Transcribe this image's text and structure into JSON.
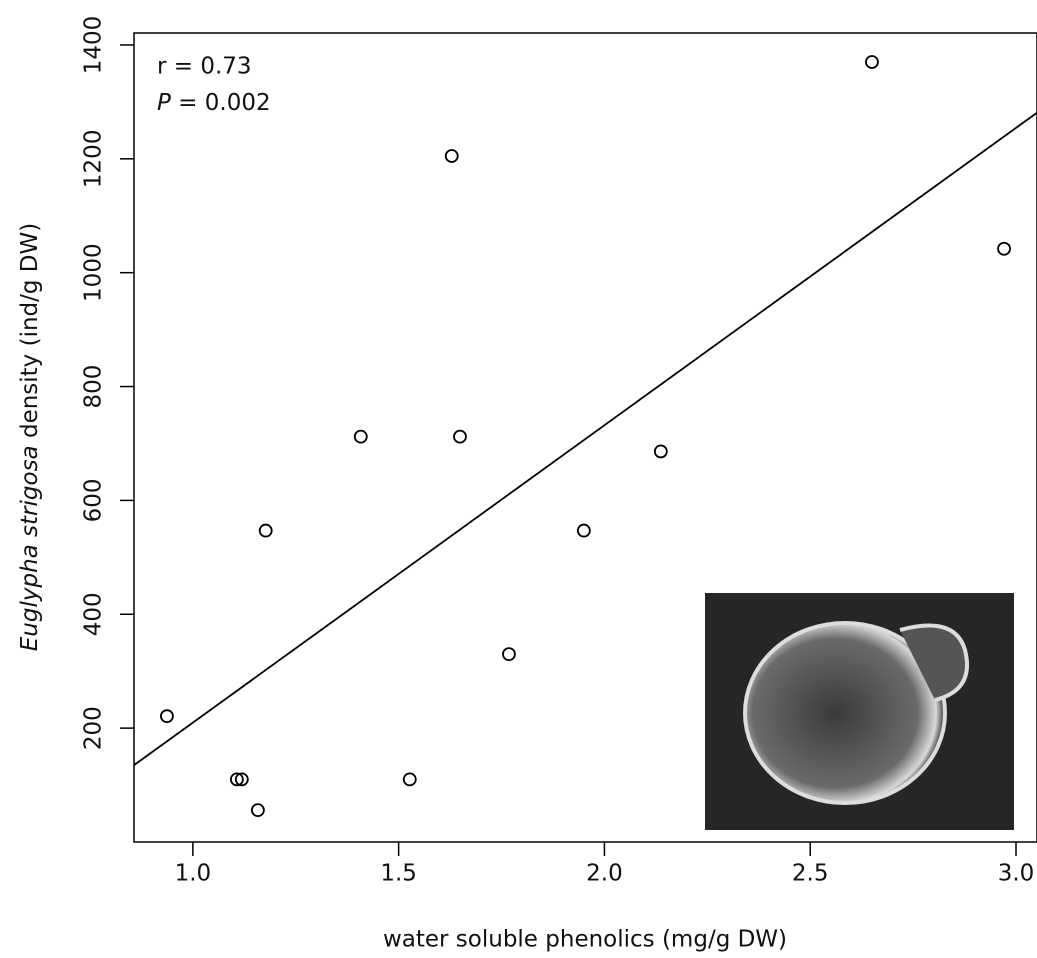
{
  "chart_data": {
    "type": "scatter",
    "x_label": "water soluble phenolics (mg/g DW)",
    "y_label": {
      "italic": "Euglypha strigosa",
      "text": " density (ind/g DW)"
    },
    "annotations": {
      "r": "r = 0.73",
      "p_italic": "P",
      "p_text": " = 0.002"
    },
    "x": [
      0.937,
      1.107,
      1.119,
      1.158,
      1.177,
      1.408,
      1.527,
      1.629,
      1.649,
      1.768,
      1.95,
      2.137,
      2.65,
      2.971
    ],
    "values": [
      221,
      110,
      110,
      56,
      547,
      712,
      110,
      1205,
      712,
      330,
      547,
      686,
      1370,
      1042
    ],
    "color": "#000000",
    "regression_line": {
      "x": [
        0.857,
        3.051
      ],
      "y": [
        135,
        1281
      ]
    },
    "xlim": [
      0.857,
      3.051
    ],
    "ylim": [
      0,
      1421
    ],
    "xticks": [
      {
        "value": 1.0,
        "label": "1.0"
      },
      1.5,
      {
        "value": 2.0,
        "label": "2.0"
      },
      2.5,
      {
        "value": 3.0,
        "label": "3.0"
      }
    ],
    "yticks": [
      200,
      400,
      600,
      800,
      1000,
      1200,
      1400
    ]
  }
}
